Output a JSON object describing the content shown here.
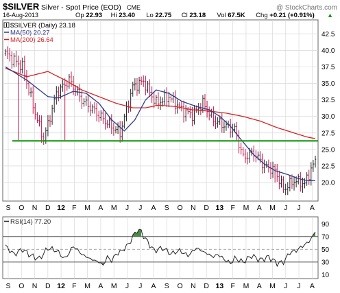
{
  "header": {
    "symbol": "$SILVER",
    "description": "Silver - Spot Price (EOD)",
    "exchange": "CME",
    "watermark": "@ StockCharts.com",
    "date": "16-Aug-2013",
    "ohlc": [
      {
        "label": "Op",
        "value": "22.93"
      },
      {
        "label": "Hi",
        "value": "23.40"
      },
      {
        "label": "Lo",
        "value": "22.75"
      },
      {
        "label": "Cl",
        "value": "23.18"
      },
      {
        "label": "Vol",
        "value": "67.5K"
      },
      {
        "label": "Chg",
        "value": "+0.21 (+0.91%)"
      }
    ],
    "up_arrow": "▲"
  },
  "colors": {
    "price_bar": "#c0144a",
    "ma50": "#2b3a8f",
    "ma200": "#d62020",
    "support_line": "#119911",
    "rsi_line": "#222222",
    "rsi_overbought_fill": "#4c8a4c",
    "rsi_oversold_fill": "#888888",
    "grid": "#d8d8d8",
    "frame": "#666666"
  },
  "chart_data": [
    {
      "type": "bar",
      "subtype": "ohlc",
      "title": "$SILVER (Daily) 23.18",
      "legend": [
        {
          "icon": "ohlc-icon",
          "label": "$SILVER (Daily) 23.18",
          "color": "#000000"
        },
        {
          "icon": "line-icon",
          "label": "MA(50) 20.27",
          "color": "#2b3a8f"
        },
        {
          "icon": "line-icon",
          "label": "MA(200) 26.64",
          "color": "#d62020"
        }
      ],
      "legend_placement": "top-left",
      "y_axis": {
        "side": "right",
        "min": 17.3,
        "max": 44.5,
        "ticks": [
          20.0,
          22.5,
          25.0,
          27.5,
          30.0,
          32.5,
          35.0,
          37.5,
          40.0,
          42.5
        ]
      },
      "x_axis": {
        "months": [
          "S",
          "O",
          "N",
          "D",
          "12",
          "F",
          "M",
          "A",
          "M",
          "J",
          "J",
          "A",
          "S",
          "O",
          "N",
          "D",
          "13",
          "F",
          "M",
          "A",
          "M",
          "J",
          "J",
          "A"
        ],
        "year_marks": [
          "12",
          "13"
        ]
      },
      "grid": true,
      "support_level": 26.3,
      "close_anchors": [
        [
          0,
          39.5
        ],
        [
          8,
          37.5
        ],
        [
          14,
          30.5
        ],
        [
          18,
          26.5
        ],
        [
          24,
          33.5
        ],
        [
          30,
          35.5
        ],
        [
          36,
          32.5
        ],
        [
          42,
          30.8
        ],
        [
          48,
          29.0
        ],
        [
          54,
          27.5
        ],
        [
          60,
          34.5
        ],
        [
          65,
          35.3
        ],
        [
          71,
          32.0
        ],
        [
          77,
          33.0
        ],
        [
          83,
          31.0
        ],
        [
          88,
          30.2
        ],
        [
          93,
          32.0
        ],
        [
          98,
          29.5
        ],
        [
          104,
          28.5
        ],
        [
          108,
          28.0
        ],
        [
          112,
          23.8
        ],
        [
          117,
          24.5
        ],
        [
          122,
          22.5
        ],
        [
          127,
          21.8
        ],
        [
          131,
          19.0
        ],
        [
          136,
          20.3
        ],
        [
          141,
          19.8
        ],
        [
          144,
          22.0
        ],
        [
          146,
          23.18
        ]
      ],
      "ma50_anchors": [
        [
          0,
          37.5
        ],
        [
          10,
          35.5
        ],
        [
          20,
          33.0
        ],
        [
          25,
          32.8
        ],
        [
          32,
          33.8
        ],
        [
          38,
          33.5
        ],
        [
          44,
          32.0
        ],
        [
          50,
          29.5
        ],
        [
          56,
          27.8
        ],
        [
          61,
          29.5
        ],
        [
          66,
          32.5
        ],
        [
          71,
          34.0
        ],
        [
          77,
          33.5
        ],
        [
          83,
          32.3
        ],
        [
          90,
          31.5
        ],
        [
          96,
          31.0
        ],
        [
          101,
          30.0
        ],
        [
          106,
          28.5
        ],
        [
          111,
          26.5
        ],
        [
          117,
          24.2
        ],
        [
          122,
          22.8
        ],
        [
          127,
          21.8
        ],
        [
          133,
          21.2
        ],
        [
          138,
          20.6
        ],
        [
          142,
          20.3
        ],
        [
          146,
          20.27
        ]
      ],
      "ma200_anchors": [
        [
          0,
          37.3
        ],
        [
          10,
          36.0
        ],
        [
          20,
          36.8
        ],
        [
          28,
          35.5
        ],
        [
          36,
          34.0
        ],
        [
          44,
          33.0
        ],
        [
          52,
          32.0
        ],
        [
          60,
          31.3
        ],
        [
          66,
          31.3
        ],
        [
          72,
          31.7
        ],
        [
          80,
          31.5
        ],
        [
          88,
          31.0
        ],
        [
          96,
          30.8
        ],
        [
          104,
          30.5
        ],
        [
          112,
          30.0
        ],
        [
          120,
          29.3
        ],
        [
          128,
          28.3
        ],
        [
          136,
          27.5
        ],
        [
          142,
          26.9
        ],
        [
          146,
          26.64
        ]
      ],
      "spikes": [
        [
          6,
          26.4
        ],
        [
          28,
          26.4
        ],
        [
          127,
          20.0
        ],
        [
          131,
          18.8
        ]
      ]
    },
    {
      "type": "line",
      "title": "RSI(14) 77.20",
      "legend": [
        {
          "icon": "line-icon",
          "label": "RSI(14) 77.20",
          "color": "#222222"
        }
      ],
      "legend_placement": "top-left",
      "y_axis": {
        "side": "right",
        "min": 5,
        "max": 100,
        "ticks": [
          10,
          30,
          50,
          70,
          90
        ]
      },
      "reference_lines": [
        30,
        50,
        70
      ],
      "rsi_anchors": [
        [
          0,
          55
        ],
        [
          4,
          42
        ],
        [
          8,
          50
        ],
        [
          12,
          40
        ],
        [
          16,
          35
        ],
        [
          20,
          52
        ],
        [
          24,
          48
        ],
        [
          28,
          35
        ],
        [
          32,
          55
        ],
        [
          36,
          42
        ],
        [
          40,
          35
        ],
        [
          44,
          30
        ],
        [
          46,
          25
        ],
        [
          48,
          38
        ],
        [
          50,
          32
        ],
        [
          52,
          42
        ],
        [
          55,
          48
        ],
        [
          58,
          58
        ],
        [
          60,
          70
        ],
        [
          62,
          80
        ],
        [
          64,
          78
        ],
        [
          66,
          66
        ],
        [
          70,
          48
        ],
        [
          74,
          52
        ],
        [
          78,
          43
        ],
        [
          82,
          48
        ],
        [
          86,
          40
        ],
        [
          90,
          52
        ],
        [
          94,
          45
        ],
        [
          98,
          38
        ],
        [
          100,
          42
        ],
        [
          104,
          32
        ],
        [
          106,
          28
        ],
        [
          108,
          36
        ],
        [
          112,
          30
        ],
        [
          116,
          40
        ],
        [
          120,
          33
        ],
        [
          124,
          38
        ],
        [
          128,
          28
        ],
        [
          131,
          30
        ],
        [
          134,
          45
        ],
        [
          137,
          48
        ],
        [
          140,
          55
        ],
        [
          143,
          62
        ],
        [
          145,
          72
        ],
        [
          146,
          77.2
        ]
      ]
    }
  ]
}
